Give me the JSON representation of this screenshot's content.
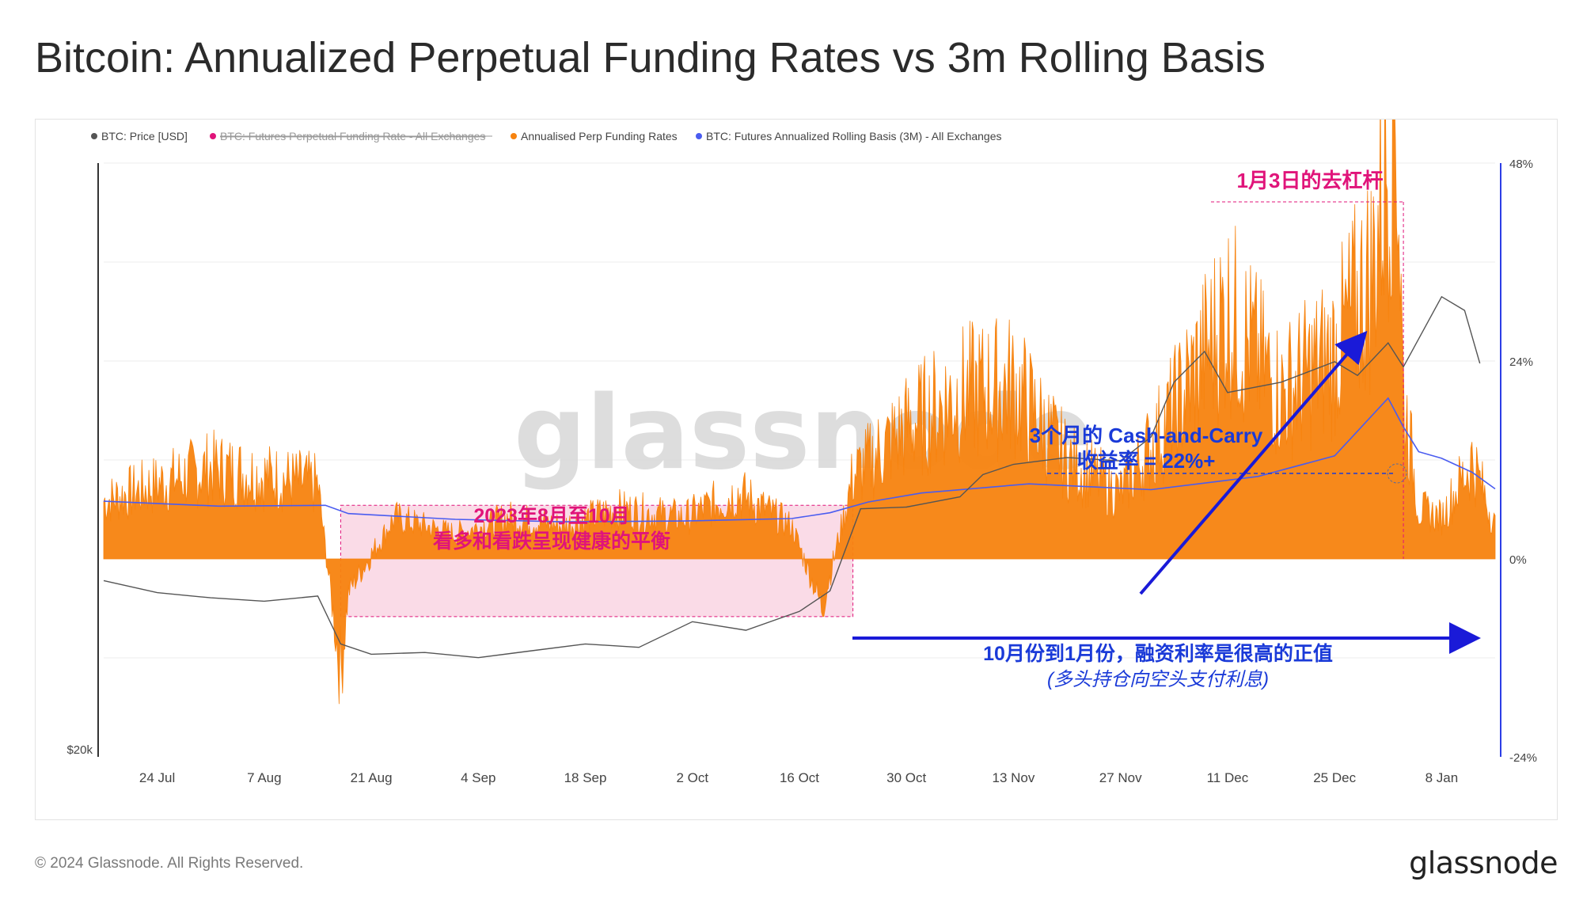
{
  "title": "Bitcoin: Annualized Perpetual Funding Rates vs 3m Rolling Basis",
  "footer": {
    "copyright": "© 2024 Glassnode. All Rights Reserved.",
    "logo": "glassnode"
  },
  "watermark": "glassnode",
  "chart_data": {
    "type": "area",
    "legend_position": "top-left",
    "legend": [
      {
        "label": "BTC: Price [USD]",
        "color": "#555555",
        "struck": false
      },
      {
        "label": "BTC: Futures Perpetual Funding Rate - All Exchanges",
        "color": "#e0147a",
        "struck": true
      },
      {
        "label": "Annualised Perp Funding Rates",
        "color": "#f7830f",
        "struck": false
      },
      {
        "label": "BTC: Futures Annualized Rolling Basis (3M) - All Exchanges",
        "color": "#4a5cf0",
        "struck": false
      }
    ],
    "x_ticks": [
      "24 Jul",
      "7 Aug",
      "21 Aug",
      "4 Sep",
      "18 Sep",
      "2 Oct",
      "16 Oct",
      "30 Oct",
      "13 Nov",
      "27 Nov",
      "11 Dec",
      "25 Dec",
      "8 Jan"
    ],
    "x_range": [
      "2023-07-17",
      "2024-01-15"
    ],
    "y_right_ticks": [
      "48%",
      "24%",
      "0%",
      "-24%"
    ],
    "y_right_range": [
      -24,
      48
    ],
    "y_left_ticks": [
      "$20k"
    ],
    "grid": true,
    "series_price": {
      "name": "BTC: Price [USD]",
      "color": "#555555",
      "x": [
        "2023-07-17",
        "2023-07-24",
        "2023-07-31",
        "2023-08-07",
        "2023-08-14",
        "2023-08-17",
        "2023-08-21",
        "2023-08-28",
        "2023-09-04",
        "2023-09-11",
        "2023-09-18",
        "2023-09-25",
        "2023-10-02",
        "2023-10-09",
        "2023-10-16",
        "2023-10-20",
        "2023-10-24",
        "2023-10-30",
        "2023-11-06",
        "2023-11-09",
        "2023-11-13",
        "2023-11-20",
        "2023-11-27",
        "2023-12-01",
        "2023-12-04",
        "2023-12-08",
        "2023-12-11",
        "2023-12-18",
        "2023-12-25",
        "2023-12-28",
        "2024-01-01",
        "2024-01-03",
        "2024-01-08",
        "2024-01-11",
        "2024-01-13"
      ],
      "y": [
        30300,
        29600,
        29300,
        29100,
        29400,
        26600,
        26000,
        26100,
        25800,
        26200,
        26600,
        26400,
        27900,
        27400,
        28500,
        29700,
        34500,
        34600,
        35200,
        36500,
        37100,
        37500,
        37300,
        38700,
        41900,
        43700,
        41300,
        41900,
        43100,
        42300,
        44200,
        42800,
        46900,
        46100,
        43000
      ]
    },
    "series_basis": {
      "name": "BTC: Futures Annualized Rolling Basis (3M) - All Exchanges",
      "color": "#4a5cf0",
      "x": [
        "2023-07-17",
        "2023-08-01",
        "2023-08-15",
        "2023-08-18",
        "2023-09-01",
        "2023-09-15",
        "2023-10-01",
        "2023-10-15",
        "2023-10-20",
        "2023-10-25",
        "2023-11-01",
        "2023-11-15",
        "2023-12-01",
        "2023-12-15",
        "2023-12-25",
        "2024-01-01",
        "2024-01-03",
        "2024-01-05",
        "2024-01-08",
        "2024-01-12",
        "2024-01-15"
      ],
      "y": [
        7.0,
        6.4,
        6.5,
        5.5,
        4.8,
        4.5,
        4.6,
        4.9,
        5.6,
        6.9,
        8.0,
        9.1,
        8.4,
        10.0,
        12.5,
        19.5,
        16.0,
        13.0,
        12.2,
        10.5,
        8.5
      ]
    },
    "series_funding": {
      "name": "Annualised Perp Funding Rates",
      "color": "#f7830f",
      "x": [
        "2023-07-17",
        "2023-07-24",
        "2023-07-31",
        "2023-08-07",
        "2023-08-14",
        "2023-08-17",
        "2023-08-18",
        "2023-08-24",
        "2023-09-01",
        "2023-09-08",
        "2023-09-15",
        "2023-09-22",
        "2023-10-01",
        "2023-10-08",
        "2023-10-15",
        "2023-10-19",
        "2023-10-23",
        "2023-10-30",
        "2023-11-06",
        "2023-11-13",
        "2023-11-20",
        "2023-11-27",
        "2023-12-04",
        "2023-12-11",
        "2023-12-18",
        "2023-12-25",
        "2023-12-30",
        "2024-01-02",
        "2024-01-03",
        "2024-01-05",
        "2024-01-08",
        "2024-01-12",
        "2024-01-15"
      ],
      "y": [
        7,
        9,
        11,
        10,
        9,
        -14,
        -4,
        5,
        3,
        5,
        4,
        6,
        5,
        8,
        4,
        -6,
        10,
        16,
        20,
        21,
        12,
        8,
        18,
        30,
        20,
        25,
        35,
        58,
        20,
        6,
        5,
        12,
        4
      ]
    },
    "annotations": [
      {
        "text": "1月3日的去杠杆",
        "color": "#e0147a"
      },
      {
        "text": "2023年8月至10月",
        "color": "#e0147a"
      },
      {
        "text": "看多和看跌呈现健康的平衡",
        "color": "#e0147a"
      },
      {
        "text": "3个月的 Cash-and-Carry",
        "color": "#1a3ad8"
      },
      {
        "text": "收益率 = 22%+",
        "color": "#1a3ad8"
      },
      {
        "text": "10月份到1月份，融资利率是很高的正值",
        "color": "#1a3ad8"
      },
      {
        "text": "(多头持仓向空头支付利息)",
        "color": "#1a3ad8"
      }
    ],
    "highlight_region": {
      "x_start": "2023-08-17",
      "x_end": "2023-10-23",
      "color": "#f5bdd3"
    }
  }
}
